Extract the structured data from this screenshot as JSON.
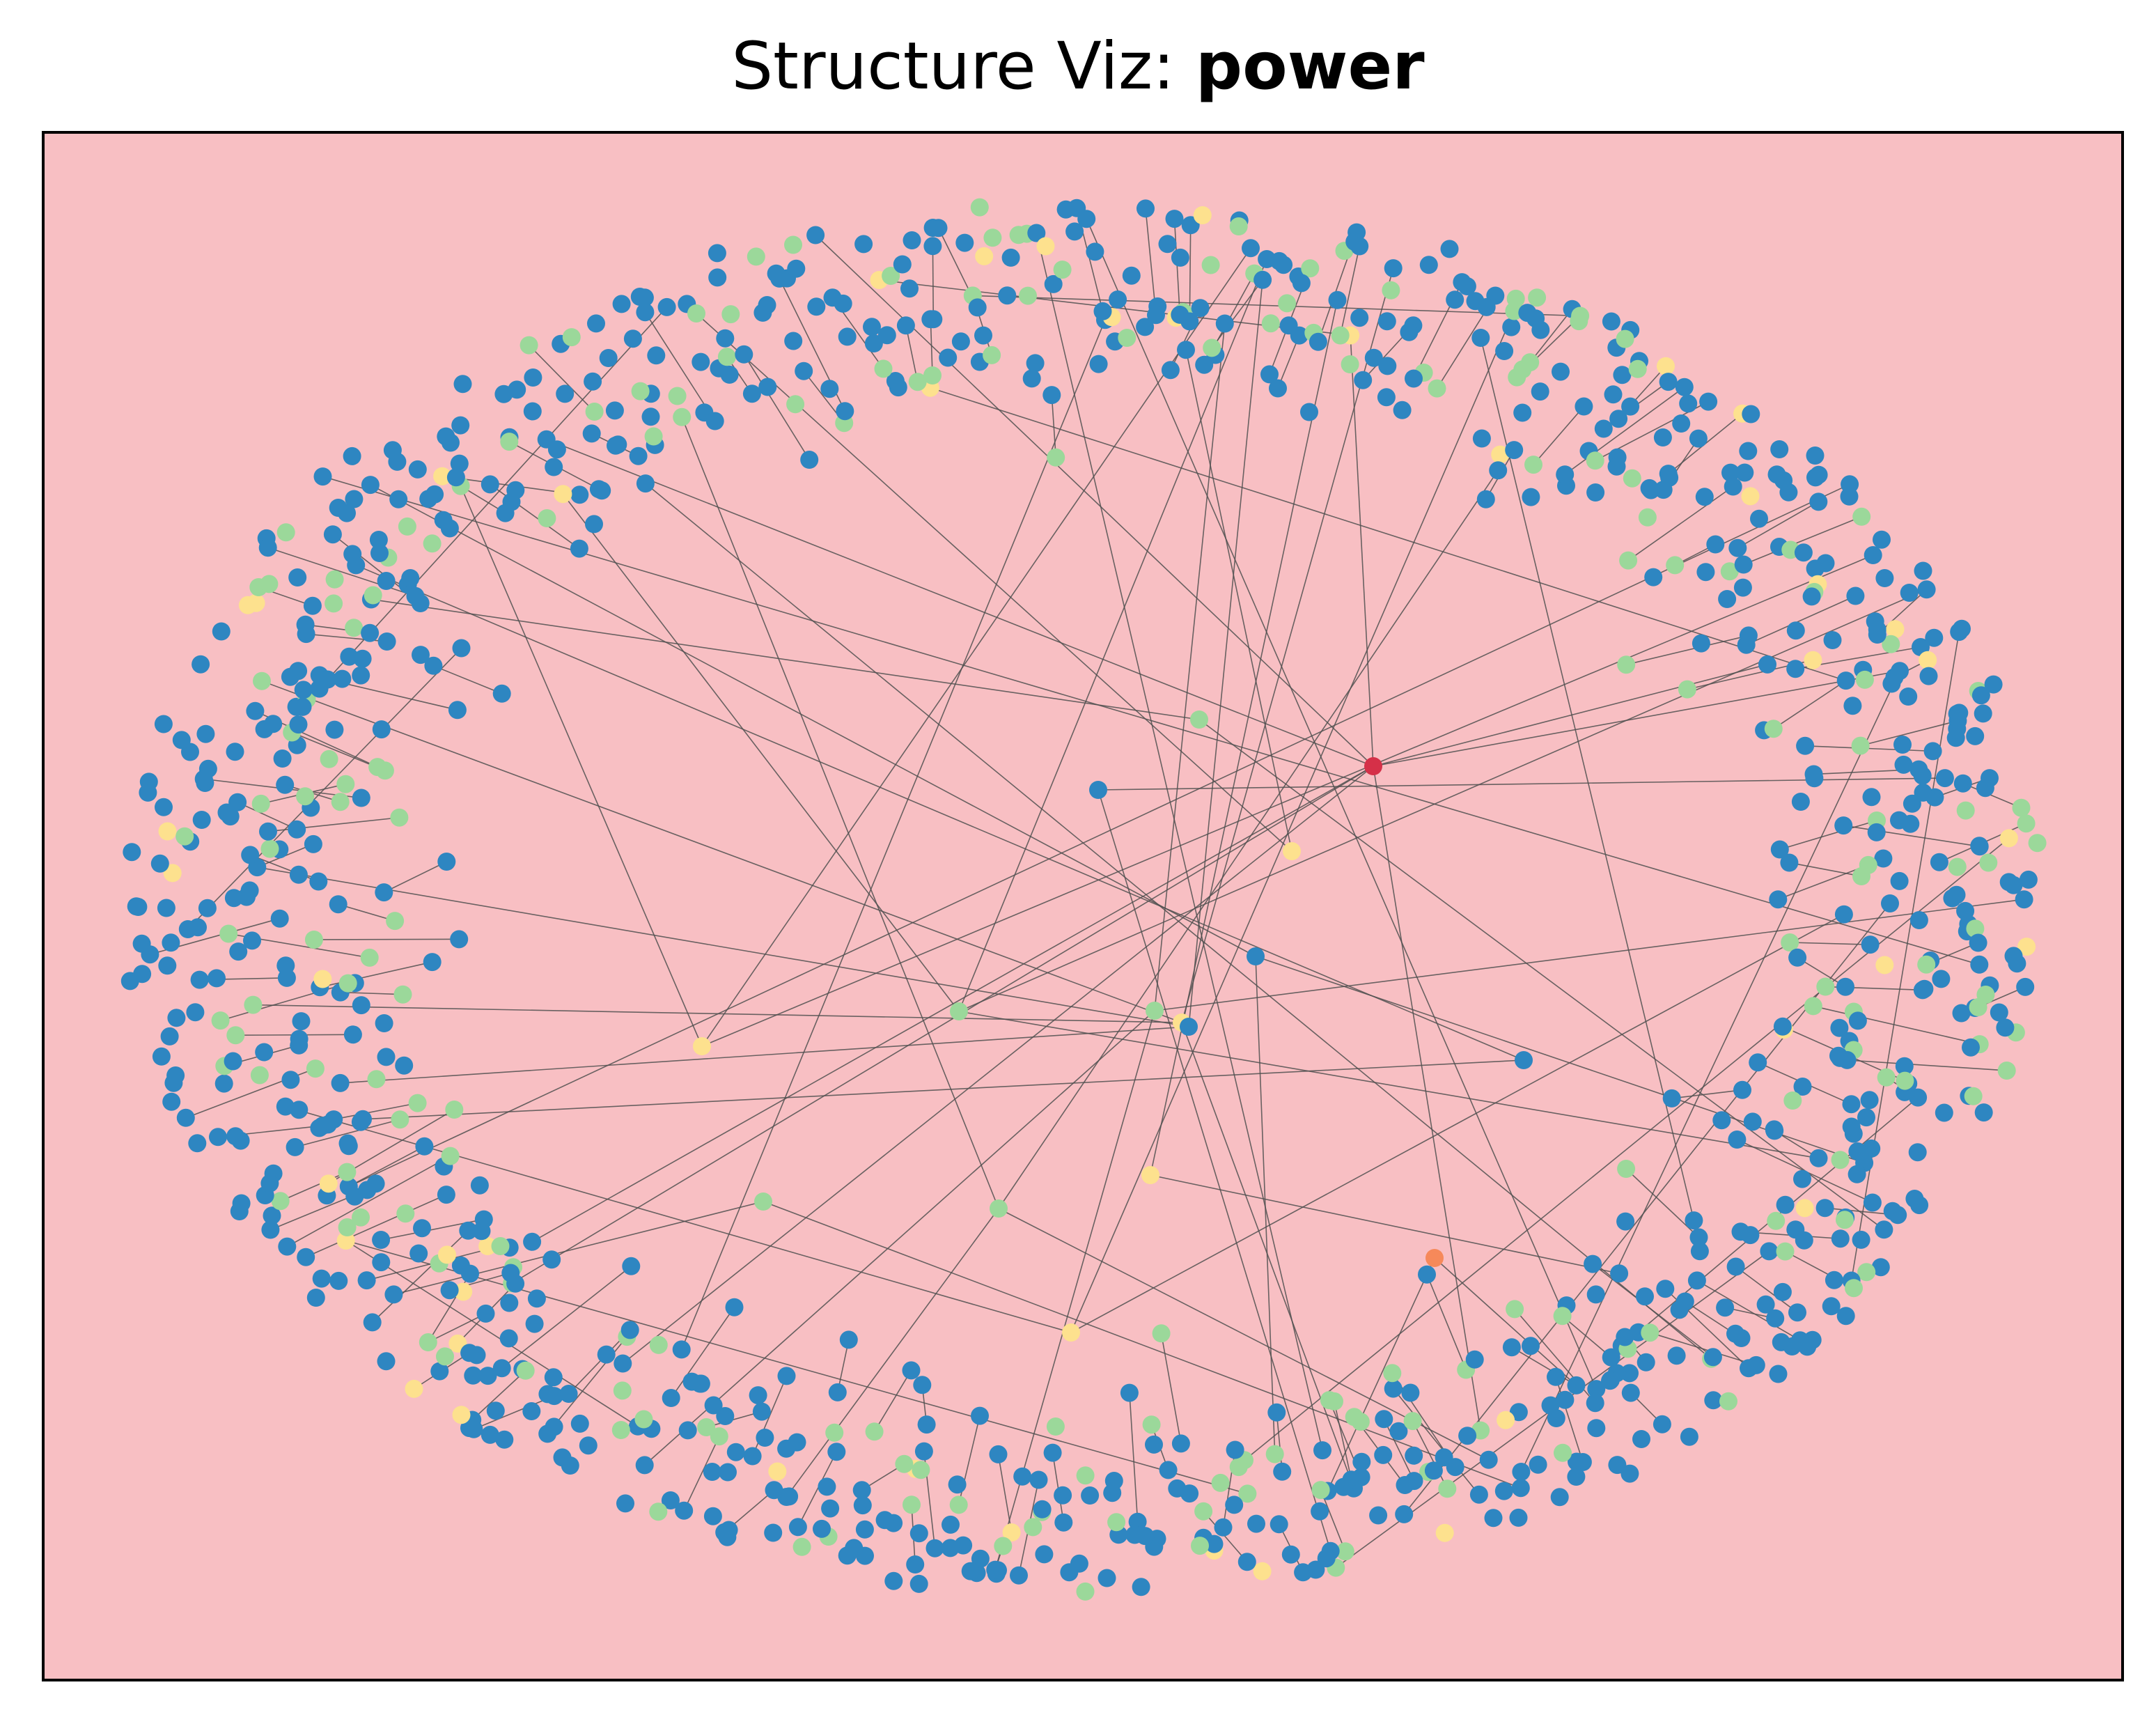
{
  "title": {
    "prefix": "Structure Viz: ",
    "name": "power"
  },
  "colors": {
    "background": "#f8bfc3",
    "edge": "#505050",
    "node_blue": "#2e86c1",
    "node_green": "#9bd89a",
    "node_yellow": "#fde18e",
    "node_orange": "#f6895a",
    "node_red": "#d53048",
    "frame": "#000000"
  },
  "legend": {
    "shown": false
  }
}
